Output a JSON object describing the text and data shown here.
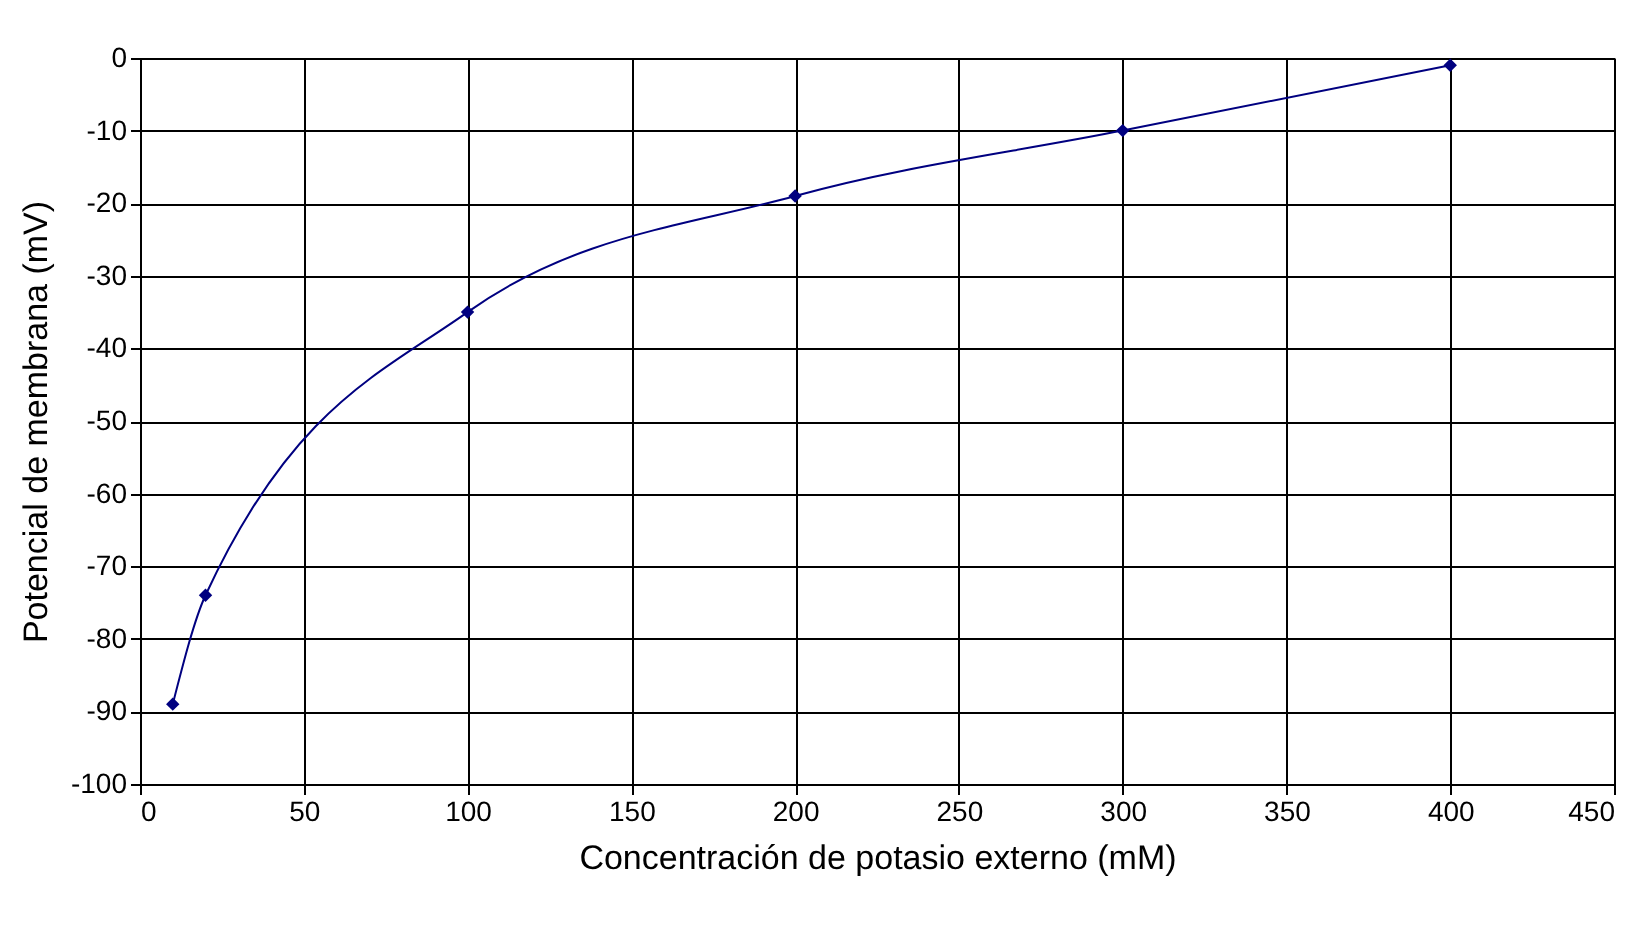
{
  "chart_data": {
    "type": "line",
    "xlabel": "Concentración de potasio externo (mM)",
    "ylabel": "Potencial de membrana (mV)",
    "x": [
      10,
      20,
      100,
      200,
      300,
      400
    ],
    "series": [
      {
        "color": "#000080",
        "values": [
          -89,
          -74,
          -35,
          -19,
          -10,
          -1
        ]
      }
    ],
    "xlim": [
      0,
      450
    ],
    "xticks": [
      0,
      50,
      100,
      150,
      200,
      250,
      300,
      350,
      400,
      450
    ],
    "ylim": [
      -100,
      0
    ],
    "yticks": [
      -100,
      -90,
      -80,
      -70,
      -60,
      -50,
      -40,
      -30,
      -20,
      -10,
      0
    ],
    "grid": true,
    "marker": "diamond",
    "line_style": "solid"
  }
}
